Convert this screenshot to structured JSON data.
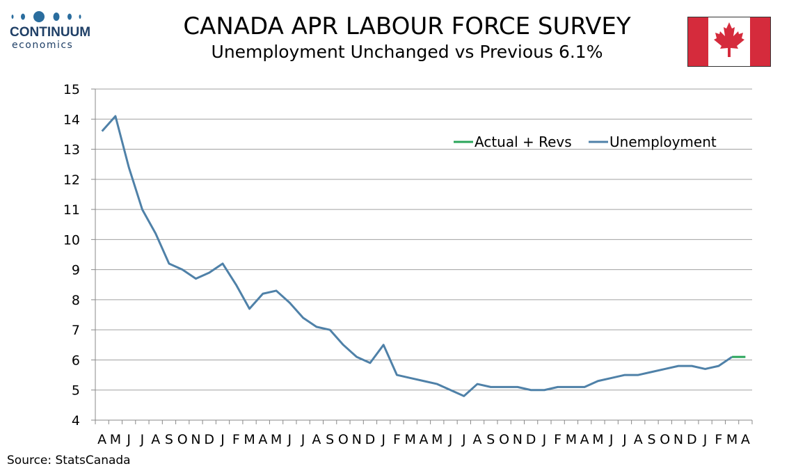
{
  "logo": {
    "word": "CONTINUUM",
    "sub": "economics"
  },
  "header": {
    "title": "CANADA APR LABOUR FORCE SURVEY",
    "subtitle": "Unemployment Unchanged vs Previous 6.1%"
  },
  "source": "Source: StatsCanada",
  "colors": {
    "unemployment": "#4f81a8",
    "actual": "#2aa55a",
    "grid": "#a0a0a0",
    "flag_red": "#d52b3c"
  },
  "chart_data": {
    "type": "line",
    "title": "CANADA APR LABOUR FORCE SURVEY",
    "subtitle": "Unemployment Unchanged vs Previous 6.1%",
    "categories": [
      "A",
      "M",
      "J",
      "J",
      "A",
      "S",
      "O",
      "N",
      "D",
      "J",
      "F",
      "M",
      "A",
      "M",
      "J",
      "J",
      "A",
      "S",
      "O",
      "N",
      "D",
      "J",
      "F",
      "M",
      "A",
      "M",
      "J",
      "J",
      "A",
      "S",
      "O",
      "N",
      "D",
      "J",
      "F",
      "M",
      "A",
      "M",
      "J",
      "J",
      "A",
      "S",
      "O",
      "N",
      "D",
      "J",
      "F",
      "M",
      "A"
    ],
    "ylim": [
      4,
      15
    ],
    "yticks": [
      4,
      5,
      6,
      7,
      8,
      9,
      10,
      11,
      12,
      13,
      14,
      15
    ],
    "grid": true,
    "legend_position": "top-right",
    "series": [
      {
        "name": "Actual + Revs",
        "color": "#2aa55a",
        "values": [
          null,
          null,
          null,
          null,
          null,
          null,
          null,
          null,
          null,
          null,
          null,
          null,
          null,
          null,
          null,
          null,
          null,
          null,
          null,
          null,
          null,
          null,
          null,
          null,
          null,
          null,
          null,
          null,
          null,
          null,
          null,
          null,
          null,
          null,
          null,
          null,
          null,
          null,
          null,
          null,
          null,
          null,
          null,
          null,
          null,
          null,
          null,
          6.1,
          6.1
        ]
      },
      {
        "name": "Unemployment",
        "color": "#4f81a8",
        "values": [
          13.6,
          14.1,
          12.4,
          11.0,
          10.2,
          9.2,
          9.0,
          8.7,
          8.9,
          9.2,
          8.5,
          7.7,
          8.2,
          8.3,
          7.9,
          7.4,
          7.1,
          7.0,
          6.5,
          6.1,
          5.9,
          6.5,
          5.5,
          5.4,
          5.3,
          5.2,
          5.0,
          4.8,
          5.2,
          5.1,
          5.1,
          5.1,
          5.0,
          5.0,
          5.1,
          5.1,
          5.1,
          5.3,
          5.4,
          5.5,
          5.5,
          5.6,
          5.7,
          5.8,
          5.8,
          5.7,
          5.8,
          6.1,
          null
        ]
      }
    ]
  }
}
